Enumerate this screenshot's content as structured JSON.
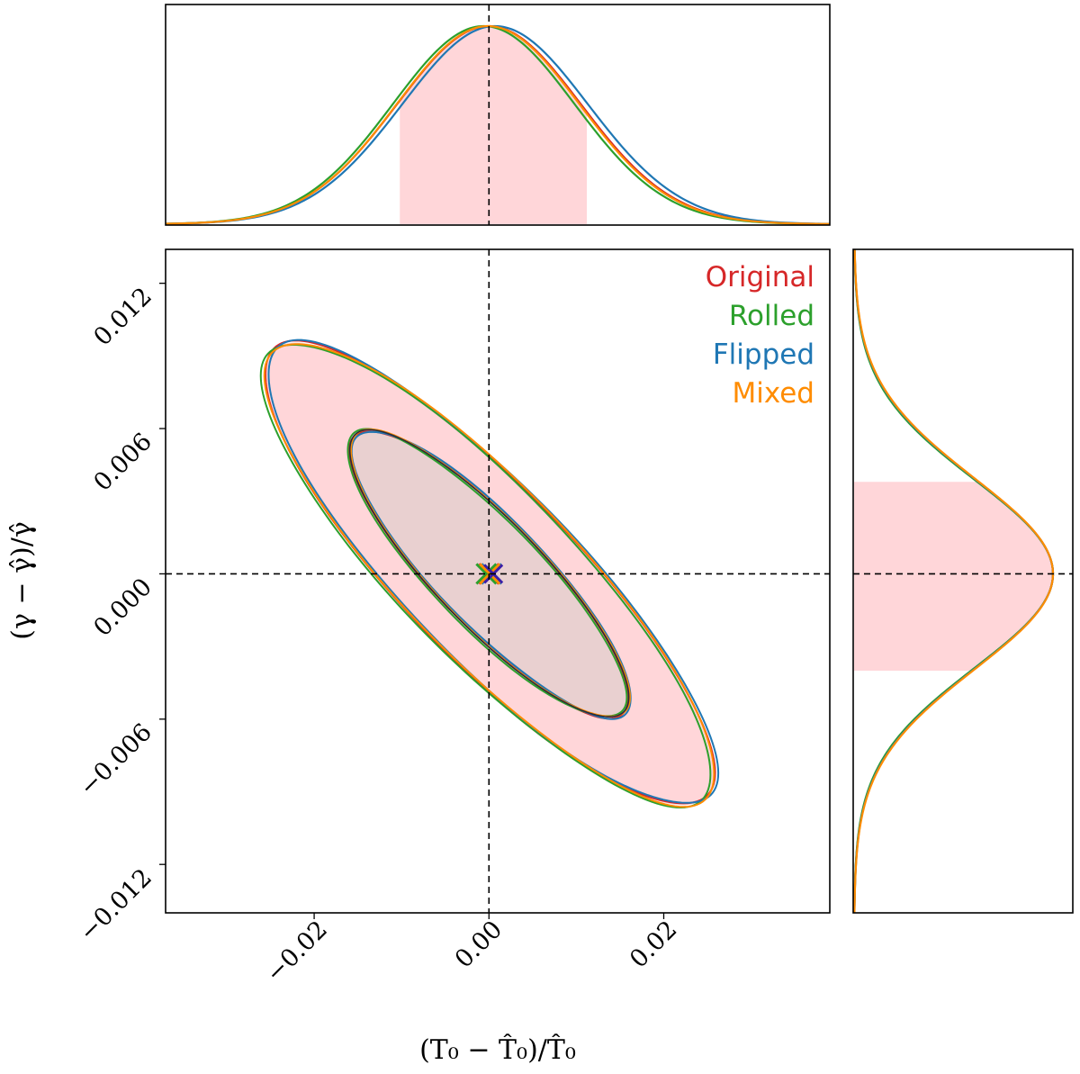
{
  "chart_data": {
    "type": "scatter",
    "subtype": "corner-plot-2d-contours-with-marginal-1d-distributions",
    "xlabel": "(T₀ − T̂₀)/T̂₀",
    "ylabel": "(γ − γ̂)/γ̂",
    "xlim": [
      -0.037,
      0.039
    ],
    "ylim": [
      -0.014,
      0.0134
    ],
    "x_ticks": [
      -0.02,
      0.0,
      0.02
    ],
    "x_tick_labels": [
      "−0.02",
      "0.00",
      "0.02"
    ],
    "y_ticks": [
      0.012,
      0.006,
      0.0,
      -0.006,
      -0.012
    ],
    "y_tick_labels": [
      "0.012",
      "0.006",
      "0.000",
      "−0.006",
      "−0.012"
    ],
    "reference": {
      "x": 0.0,
      "y": 0.0
    },
    "sigma_x": 0.0105,
    "sigma_y": 0.0039,
    "correlation": -0.86,
    "marginal_x_shaded_interval": [
      -0.0102,
      0.0112
    ],
    "marginal_y_shaded_interval": [
      -0.004,
      0.0038
    ],
    "contour_levels_sigma": [
      1.52,
      2.45
    ],
    "fill_color_outer": "#ffd6d9",
    "fill_color_inner": "#e9d0d0",
    "grid": false,
    "legend_placement": "top-right",
    "series": [
      {
        "name": "Original",
        "color": "#d62728",
        "center": [
          0.0,
          0.0
        ],
        "marker": "x"
      },
      {
        "name": "Rolled",
        "color": "#2ca02c",
        "center": [
          -0.0003,
          0.0
        ],
        "marker": "x"
      },
      {
        "name": "Flipped",
        "color": "#1f77b4",
        "center": [
          0.0003,
          0.0
        ],
        "marker": "x"
      },
      {
        "name": "Mixed",
        "color": "#ff8c00",
        "center": [
          0.0001,
          0.0
        ],
        "marker": "x"
      }
    ]
  }
}
